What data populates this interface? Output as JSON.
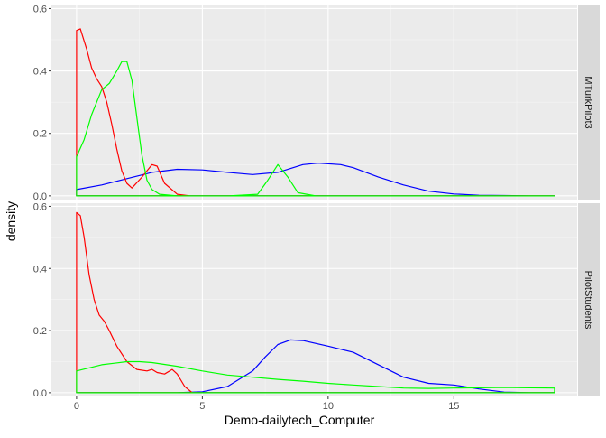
{
  "chart_data": {
    "type": "area",
    "xlabel": "Demo-dailytech_Computer",
    "ylabel": "density",
    "xlim": [
      -1,
      19.9
    ],
    "x_ticks": [
      0,
      5,
      10,
      15
    ],
    "x_tick_labels": [
      "0",
      "5",
      "10",
      "15"
    ],
    "grid": true,
    "panels": [
      {
        "facet_label": "MTurkPilot3",
        "ylim": [
          -0.012,
          0.61
        ],
        "y_ticks": [
          0.0,
          0.2,
          0.4,
          0.6
        ],
        "y_tick_labels": [
          "0.0",
          "0.2",
          "0.4",
          "0.6"
        ],
        "series": [
          {
            "color": "#0000ff",
            "x": [
              0,
              1,
              2,
              3,
              4,
              5,
              6,
              7,
              8,
              9,
              9.6,
              10.5,
              11,
              12,
              13,
              14,
              15,
              16,
              17,
              18,
              19
            ],
            "values": [
              0.02,
              0.035,
              0.055,
              0.075,
              0.085,
              0.083,
              0.075,
              0.068,
              0.075,
              0.1,
              0.105,
              0.1,
              0.09,
              0.06,
              0.035,
              0.015,
              0.006,
              0.002,
              0.001,
              0.0,
              0.0
            ]
          },
          {
            "color": "#ff0000",
            "x": [
              0,
              0.15,
              0.4,
              0.6,
              0.8,
              1.0,
              1.2,
              1.4,
              1.6,
              1.8,
              2.0,
              2.2,
              2.6,
              3.0,
              3.2,
              3.5,
              4.0,
              4.5,
              5,
              10,
              19
            ],
            "values": [
              0.53,
              0.535,
              0.47,
              0.41,
              0.375,
              0.35,
              0.3,
              0.23,
              0.15,
              0.08,
              0.04,
              0.025,
              0.06,
              0.1,
              0.095,
              0.04,
              0.005,
              0.0,
              0.0,
              0.0,
              0.0
            ]
          },
          {
            "color": "#00ff00",
            "x": [
              0,
              0.3,
              0.6,
              1.0,
              1.3,
              1.6,
              1.8,
              2.0,
              2.2,
              2.4,
              2.6,
              2.8,
              3.0,
              3.3,
              4,
              6,
              7.2,
              7.6,
              8.0,
              8.4,
              8.8,
              9.5,
              19
            ],
            "values": [
              0.125,
              0.18,
              0.26,
              0.34,
              0.36,
              0.4,
              0.43,
              0.43,
              0.37,
              0.25,
              0.13,
              0.05,
              0.02,
              0.005,
              0.0,
              0.0,
              0.005,
              0.05,
              0.1,
              0.06,
              0.01,
              0.0,
              0.0
            ]
          }
        ]
      },
      {
        "facet_label": "PilotStudents",
        "ylim": [
          -0.012,
          0.61
        ],
        "y_ticks": [
          0.0,
          0.2,
          0.4,
          0.6
        ],
        "y_tick_labels": [
          "0.0",
          "0.2",
          "0.4",
          "0.6"
        ],
        "series": [
          {
            "color": "#0000ff",
            "x": [
              0,
              4,
              5,
              6,
              7,
              7.5,
              8,
              8.5,
              9,
              10,
              11,
              12,
              13,
              14,
              15,
              16,
              17,
              18,
              19
            ],
            "values": [
              0.0,
              0.0,
              0.003,
              0.02,
              0.07,
              0.115,
              0.155,
              0.17,
              0.168,
              0.15,
              0.13,
              0.09,
              0.05,
              0.03,
              0.025,
              0.012,
              0.002,
              0.0,
              0.0
            ]
          },
          {
            "color": "#ff0000",
            "x": [
              0,
              0.15,
              0.3,
              0.5,
              0.7,
              0.9,
              1.1,
              1.3,
              1.6,
              2.0,
              2.4,
              2.8,
              3.0,
              3.2,
              3.5,
              3.8,
              4.0,
              4.3,
              4.6,
              5,
              19
            ],
            "values": [
              0.58,
              0.57,
              0.5,
              0.38,
              0.3,
              0.25,
              0.23,
              0.2,
              0.15,
              0.1,
              0.075,
              0.07,
              0.075,
              0.065,
              0.06,
              0.075,
              0.06,
              0.02,
              0.0,
              0.0,
              0.0
            ]
          },
          {
            "color": "#00ff00",
            "x": [
              0,
              1,
              2,
              2.5,
              3,
              4,
              5,
              6,
              7,
              8,
              9,
              10,
              11,
              12,
              13,
              14,
              15,
              16,
              17,
              18,
              19
            ],
            "values": [
              0.07,
              0.09,
              0.1,
              0.1,
              0.097,
              0.085,
              0.07,
              0.057,
              0.05,
              0.043,
              0.037,
              0.03,
              0.025,
              0.02,
              0.015,
              0.014,
              0.015,
              0.016,
              0.017,
              0.016,
              0.015
            ]
          }
        ]
      }
    ]
  }
}
